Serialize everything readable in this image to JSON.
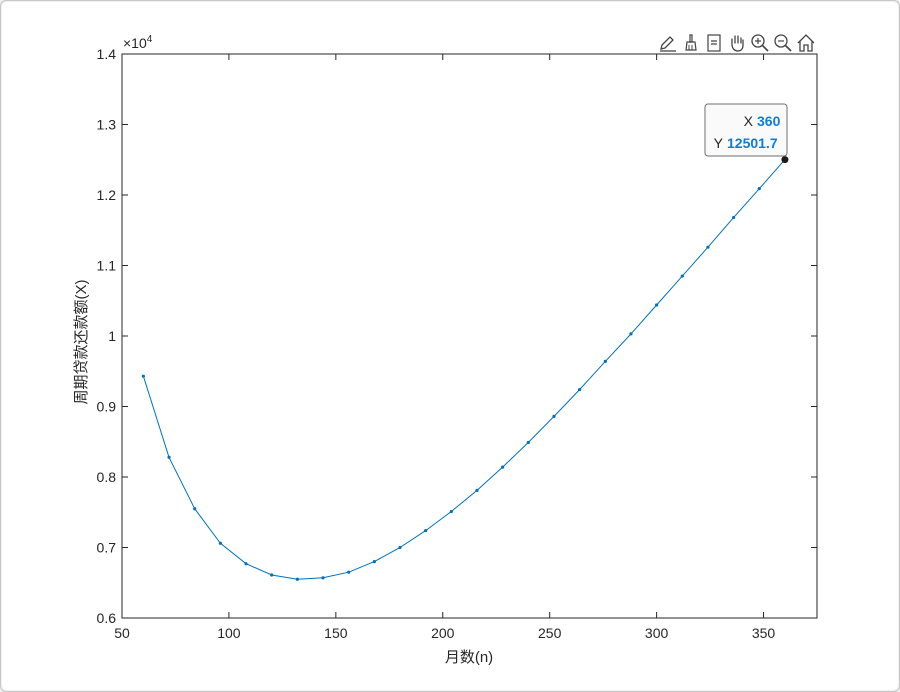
{
  "toolbar": {
    "buttons": [
      {
        "icon": "edit-annotation-icon"
      },
      {
        "icon": "brush-icon"
      },
      {
        "icon": "data-tip-icon"
      },
      {
        "icon": "pan-hand-icon"
      },
      {
        "icon": "zoom-in-icon"
      },
      {
        "icon": "zoom-out-icon"
      },
      {
        "icon": "home-icon"
      }
    ]
  },
  "chart_data": {
    "type": "line",
    "title": "",
    "xlabel": "月数(n)",
    "ylabel": "周期贷款还款额(X)",
    "y_exponent_label": "×10",
    "y_exponent_power": "4",
    "xlim": [
      50,
      375
    ],
    "ylim": [
      6000,
      14000
    ],
    "xticks": [
      50,
      100,
      150,
      200,
      250,
      300,
      350
    ],
    "yticks": [
      6000,
      7000,
      8000,
      9000,
      10000,
      11000,
      12000,
      13000,
      14000
    ],
    "ytick_labels": [
      "0.6",
      "0.7",
      "0.8",
      "0.9",
      "1",
      "1.1",
      "1.2",
      "1.3",
      "1.4"
    ],
    "grid": false,
    "line_color": "#0072bd",
    "marker": "dot",
    "x": [
      60,
      72,
      84,
      96,
      108,
      120,
      132,
      144,
      156,
      168,
      180,
      192,
      204,
      216,
      228,
      240,
      252,
      264,
      276,
      288,
      300,
      312,
      324,
      336,
      348,
      360
    ],
    "y": [
      9430,
      8280,
      7550,
      7060,
      6770,
      6610,
      6550,
      6570,
      6650,
      6800,
      7000,
      7240,
      7510,
      7810,
      8140,
      8490,
      8860,
      9240,
      9640,
      10030,
      10440,
      10850,
      11260,
      11680,
      12090,
      12501.7
    ],
    "datatip": {
      "x_label": "X",
      "x_value": "360",
      "y_label": "Y",
      "y_value": "12501.7",
      "value_color": "#0b7dda",
      "point_x": 360,
      "point_y": 12501.7
    }
  }
}
